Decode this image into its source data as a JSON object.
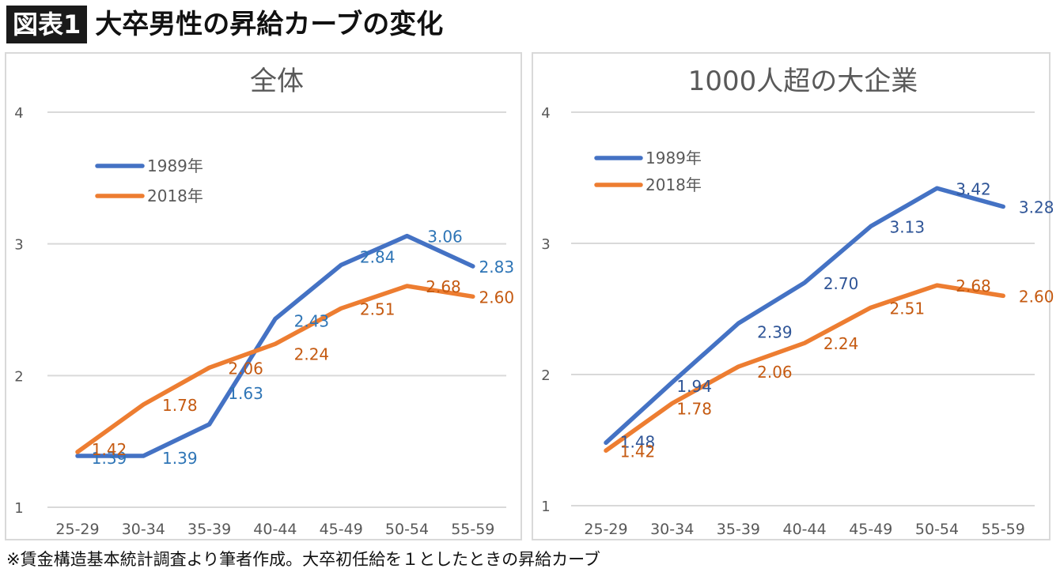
{
  "header": {
    "badge": "図表1",
    "title": "大卒男性の昇給カーブの変化"
  },
  "footnote": "※賃金構造基本統計調査より筆者作成。大卒初任給を１としたときの昇給カーブ",
  "colors": {
    "series_1989": "#4472C4",
    "series_2018": "#ED7D31",
    "label_1989_left": "#2E75B6",
    "label_1989_right": "#2F5597",
    "label_2018": "#C55A11",
    "grid": "#d9d9d9",
    "axis_text": "#595959"
  },
  "chart_data": [
    {
      "type": "line",
      "title": "全体",
      "categories": [
        "25-29",
        "30-34",
        "35-39",
        "40-44",
        "45-49",
        "50-54",
        "55-59"
      ],
      "ylim": [
        1,
        4
      ],
      "yticks": [
        "1",
        "2",
        "3",
        "4"
      ],
      "grid": true,
      "legend": "top-left",
      "series": [
        {
          "name": "1989年",
          "values": [
            1.39,
            1.39,
            1.63,
            2.43,
            2.84,
            3.06,
            2.83
          ],
          "labels": [
            "1.39",
            "1.39",
            "1.63",
            "2.43",
            "2.84",
            "3.06",
            "2.83"
          ]
        },
        {
          "name": "2018年",
          "values": [
            1.42,
            1.78,
            2.06,
            2.24,
            2.51,
            2.68,
            2.6
          ],
          "labels": [
            "1.42",
            "1.78",
            "2.06",
            "2.24",
            "2.51",
            "2.68",
            "2.60"
          ]
        }
      ]
    },
    {
      "type": "line",
      "title": "1000人超の大企業",
      "categories": [
        "25-29",
        "30-34",
        "35-39",
        "40-44",
        "45-49",
        "50-54",
        "55-59"
      ],
      "ylim": [
        1,
        4
      ],
      "yticks": [
        "1",
        "2",
        "3",
        "4"
      ],
      "grid": true,
      "legend": "top-left",
      "series": [
        {
          "name": "1989年",
          "values": [
            1.48,
            1.94,
            2.39,
            2.7,
            3.13,
            3.42,
            3.28
          ],
          "labels": [
            "1.48",
            "1.94",
            "2.39",
            "2.70",
            "3.13",
            "3.42",
            "3.28"
          ]
        },
        {
          "name": "2018年",
          "values": [
            1.42,
            1.78,
            2.06,
            2.24,
            2.51,
            2.68,
            2.6
          ],
          "labels": [
            "1.42",
            "1.78",
            "2.06",
            "2.24",
            "2.51",
            "2.68",
            "2.60"
          ]
        }
      ]
    }
  ]
}
